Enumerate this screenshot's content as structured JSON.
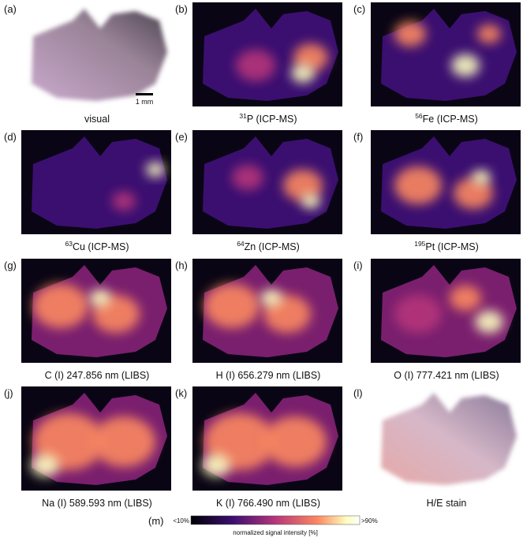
{
  "panels": [
    {
      "letter": "(a)",
      "caption": "visual"
    },
    {
      "letter": "(b)",
      "isotope": "31",
      "caption": "P (ICP-MS)"
    },
    {
      "letter": "(c)",
      "isotope": "56",
      "caption": "Fe (ICP-MS)"
    },
    {
      "letter": "(d)",
      "isotope": "63",
      "caption": "Cu (ICP-MS)"
    },
    {
      "letter": "(e)",
      "isotope": "64",
      "caption": "Zn (ICP-MS)"
    },
    {
      "letter": "(f)",
      "isotope": "195",
      "caption": "Pt (ICP-MS)"
    },
    {
      "letter": "(g)",
      "caption": "C (I) 247.856 nm (LIBS)"
    },
    {
      "letter": "(h)",
      "caption": "H (I) 656.279 nm (LIBS)"
    },
    {
      "letter": "(i)",
      "caption": "O (I) 777.421 nm (LIBS)"
    },
    {
      "letter": "(j)",
      "caption": "Na (I) 589.593 nm (LIBS)"
    },
    {
      "letter": "(k)",
      "caption": "K (I) 766.490 nm (LIBS)"
    },
    {
      "letter": "(l)",
      "caption": "H/E stain"
    }
  ],
  "scale_bar": "1 mm",
  "colorbar": {
    "letter": "(m)",
    "min": "<10%",
    "max": ">90%",
    "label": "normalized signal intensity [%]"
  }
}
